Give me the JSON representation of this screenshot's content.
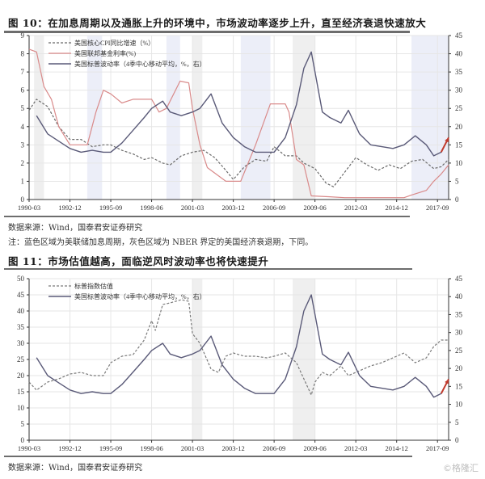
{
  "figure1": {
    "title": "图 10：在加息周期以及通胀上升的环境中，市场波动率逐步上升，直至经济衰退快速放大",
    "source": "数据来源：Wind，国泰君安证券研究",
    "note": "注：蓝色区域为美联储加息周期，灰色区域为 NBER 界定的美国经济衰退期，下同。"
  },
  "figure2": {
    "title": "图 11：市场估值越高，面临逆风时波动率也将快速提升",
    "source": "数据来源：Wind，国泰君安证券研究"
  },
  "watermark": "©格隆汇",
  "colors": {
    "vol_line": "#5a5a78",
    "ffr_line": "#d98a8a",
    "cpi_line": "#6a6a6a",
    "pe_line": "#7a7a7a",
    "hike_shade": "#eceef8",
    "recession_shade": "#efefef",
    "arrow": "#c0392b",
    "grid": "#e6e6e6"
  },
  "chart_data": [
    {
      "type": "line",
      "title": "图 10：在加息周期以及通胀上升的环境中，市场波动率逐步上升，直至经济衰退快速放大",
      "x_ticks": [
        "1990-03",
        "1992-12",
        "1995-09",
        "1998-06",
        "2001-03",
        "2003-12",
        "2006-09",
        "2009-06",
        "2012-03",
        "2014-12",
        "2017-09"
      ],
      "y_left": {
        "min": 0,
        "max": 9,
        "ticks": [
          0,
          1,
          2,
          3,
          4,
          5,
          6,
          7,
          8,
          9
        ]
      },
      "y_right": {
        "min": 0,
        "max": 45,
        "ticks": [
          0,
          5,
          10,
          15,
          20,
          25,
          30,
          35,
          40,
          45
        ]
      },
      "legend": [
        {
          "label": "美国核心CPI同比增速（%）",
          "style": "dashed"
        },
        {
          "label": "美国联邦基金利率(%)",
          "style": "solid-red"
        },
        {
          "label": "美国标普波动率（4季中心移动平均，%，右）",
          "style": "solid"
        }
      ],
      "shaded_regions": {
        "hike_cycles": [
          [
            "1994-02",
            "1995-02"
          ],
          [
            "1999-06",
            "2000-05"
          ],
          [
            "2004-06",
            "2006-06"
          ],
          [
            "2015-12",
            "2018-06"
          ]
        ],
        "recessions": [
          [
            "1990-07",
            "1991-03"
          ],
          [
            "2001-03",
            "2001-11"
          ],
          [
            "2007-12",
            "2009-06"
          ]
        ]
      },
      "series": [
        {
          "name": "美国核心CPI同比增速（%）",
          "axis": "left",
          "x": [
            "1990-03",
            "1990-09",
            "1991-06",
            "1992-03",
            "1992-12",
            "1993-09",
            "1994-06",
            "1995-03",
            "1995-09",
            "1996-06",
            "1997-03",
            "1997-12",
            "1998-06",
            "1999-03",
            "1999-09",
            "2000-06",
            "2001-03",
            "2001-12",
            "2002-09",
            "2003-06",
            "2003-12",
            "2004-09",
            "2005-06",
            "2006-03",
            "2006-09",
            "2007-06",
            "2008-03",
            "2008-09",
            "2009-06",
            "2010-03",
            "2010-09",
            "2011-06",
            "2012-03",
            "2012-12",
            "2013-09",
            "2014-06",
            "2015-03",
            "2015-12",
            "2016-09",
            "2017-06",
            "2017-12",
            "2018-06"
          ],
          "values": [
            4.9,
            5.5,
            5.1,
            4.0,
            3.3,
            3.3,
            2.9,
            3.0,
            3.0,
            2.7,
            2.5,
            2.2,
            2.3,
            2.0,
            1.9,
            2.4,
            2.6,
            2.7,
            2.3,
            1.6,
            1.1,
            1.8,
            2.2,
            2.1,
            2.9,
            2.4,
            2.4,
            2.0,
            1.7,
            0.9,
            0.7,
            1.5,
            2.3,
            1.9,
            1.6,
            1.9,
            1.7,
            2.1,
            2.2,
            1.7,
            1.8,
            2.2
          ]
        },
        {
          "name": "美国联邦基金利率(%)",
          "axis": "left",
          "x": [
            "1990-03",
            "1990-09",
            "1991-03",
            "1991-09",
            "1992-03",
            "1992-12",
            "1993-06",
            "1994-02",
            "1994-09",
            "1995-03",
            "1995-09",
            "1996-06",
            "1997-03",
            "1998-06",
            "1998-12",
            "1999-06",
            "2000-05",
            "2000-12",
            "2001-03",
            "2001-09",
            "2002-03",
            "2003-06",
            "2004-06",
            "2005-06",
            "2006-06",
            "2007-06",
            "2007-09",
            "2008-03",
            "2008-09",
            "2009-03",
            "2010-06",
            "2011-06",
            "2013-06",
            "2015-06",
            "2015-12",
            "2016-12",
            "2017-06",
            "2017-12",
            "2018-06"
          ],
          "values": [
            8.25,
            8.1,
            6.2,
            5.5,
            4.0,
            3.0,
            3.0,
            3.0,
            4.8,
            6.0,
            5.8,
            5.3,
            5.5,
            5.5,
            4.8,
            5.0,
            6.5,
            6.4,
            5.0,
            3.0,
            1.75,
            1.0,
            1.0,
            3.0,
            5.25,
            5.25,
            4.8,
            2.2,
            1.9,
            0.2,
            0.15,
            0.1,
            0.1,
            0.1,
            0.25,
            0.5,
            1.0,
            1.4,
            1.9
          ]
        },
        {
          "name": "美国标普波动率（4季中心移动平均，%，右）",
          "axis": "right",
          "x": [
            "1990-09",
            "1991-06",
            "1992-03",
            "1992-12",
            "1993-09",
            "1994-06",
            "1995-03",
            "1995-09",
            "1996-06",
            "1997-03",
            "1997-12",
            "1998-06",
            "1999-03",
            "1999-09",
            "2000-06",
            "2001-03",
            "2001-09",
            "2002-06",
            "2003-03",
            "2003-12",
            "2004-09",
            "2005-06",
            "2006-03",
            "2006-09",
            "2007-06",
            "2008-03",
            "2008-09",
            "2009-03",
            "2009-06",
            "2009-12",
            "2010-06",
            "2011-03",
            "2011-09",
            "2012-06",
            "2013-03",
            "2013-12",
            "2014-09",
            "2015-06",
            "2016-03",
            "2016-12",
            "2017-06",
            "2017-12",
            "2018-06"
          ],
          "values": [
            23,
            18,
            16,
            14,
            13,
            13.5,
            13,
            13,
            15.5,
            19,
            22.5,
            25,
            27,
            24,
            23,
            24,
            25,
            29,
            21,
            17,
            14.5,
            13,
            13,
            13,
            17,
            26,
            36,
            40.5,
            35,
            24,
            22.5,
            21,
            24.5,
            18,
            15,
            14.5,
            14,
            15,
            17.5,
            15,
            12,
            13,
            17
          ]
        }
      ]
    },
    {
      "type": "line",
      "title": "图 11：市场估值越高，面临逆风时波动率也将快速提升",
      "x_ticks": [
        "1990-03",
        "1992-12",
        "1995-09",
        "1998-06",
        "2001-03",
        "2003-12",
        "2006-09",
        "2009-06",
        "2012-03",
        "2014-12",
        "2017-09"
      ],
      "y_left": {
        "min": 0,
        "max": 50,
        "ticks": [
          0,
          5,
          10,
          15,
          20,
          25,
          30,
          35,
          40,
          45,
          50
        ]
      },
      "y_right": {
        "min": 0,
        "max": 45,
        "ticks": [
          0,
          5,
          10,
          15,
          20,
          25,
          30,
          35,
          40,
          45
        ]
      },
      "legend": [
        {
          "label": "标普指数估值",
          "style": "dashed"
        },
        {
          "label": "美国标普波动率（4季中心移动平均，%，右）",
          "style": "solid"
        }
      ],
      "shaded_regions": {
        "recessions": [
          [
            "2001-03",
            "2001-11"
          ],
          [
            "2007-12",
            "2009-06"
          ]
        ]
      },
      "series": [
        {
          "name": "标普指数估值",
          "axis": "left",
          "x": [
            "1990-03",
            "1990-09",
            "1991-06",
            "1992-03",
            "1992-12",
            "1993-09",
            "1994-06",
            "1995-03",
            "1995-09",
            "1996-06",
            "1997-03",
            "1997-12",
            "1998-06",
            "1998-09",
            "1999-03",
            "1999-09",
            "2000-06",
            "2000-12",
            "2001-03",
            "2001-09",
            "2002-06",
            "2002-12",
            "2003-06",
            "2003-12",
            "2004-09",
            "2005-06",
            "2006-03",
            "2006-09",
            "2007-06",
            "2008-03",
            "2008-09",
            "2009-03",
            "2009-06",
            "2009-12",
            "2010-06",
            "2011-03",
            "2011-09",
            "2012-06",
            "2013-03",
            "2013-12",
            "2014-09",
            "2015-06",
            "2016-03",
            "2016-12",
            "2017-06",
            "2017-12",
            "2018-06"
          ],
          "values": [
            18,
            15.5,
            18,
            19,
            20.5,
            21,
            20,
            20,
            24,
            26,
            26.5,
            31,
            37,
            34,
            42,
            42.5,
            43.5,
            43,
            33,
            30,
            22,
            21,
            26,
            27,
            26,
            26,
            25.5,
            26,
            27,
            24,
            19,
            14,
            18,
            21,
            20,
            23,
            20,
            21.5,
            23,
            24,
            25.5,
            27,
            24,
            25.5,
            29,
            31,
            31
          ]
        },
        {
          "name": "美国标普波动率（4季中心移动平均，%，右）",
          "axis": "right",
          "x": [
            "1990-09",
            "1991-06",
            "1992-03",
            "1992-12",
            "1993-09",
            "1994-06",
            "1995-03",
            "1995-09",
            "1996-06",
            "1997-03",
            "1997-12",
            "1998-06",
            "1999-03",
            "1999-09",
            "2000-06",
            "2001-03",
            "2001-09",
            "2002-06",
            "2003-03",
            "2003-12",
            "2004-09",
            "2005-06",
            "2006-03",
            "2006-09",
            "2007-06",
            "2008-03",
            "2008-09",
            "2009-03",
            "2009-06",
            "2009-12",
            "2010-06",
            "2011-03",
            "2011-09",
            "2012-06",
            "2013-03",
            "2013-12",
            "2014-09",
            "2015-06",
            "2016-03",
            "2016-12",
            "2017-06",
            "2017-12",
            "2018-06"
          ],
          "values": [
            23,
            18,
            16,
            14,
            13,
            13.5,
            13,
            13,
            15.5,
            19,
            22.5,
            25,
            27,
            24,
            23,
            24,
            25,
            29,
            21,
            17,
            14.5,
            13,
            13,
            13,
            17,
            26,
            36,
            40.5,
            35,
            24,
            22.5,
            21,
            24.5,
            18,
            15,
            14.5,
            14,
            15,
            17.5,
            15,
            12,
            13,
            17
          ]
        }
      ]
    }
  ]
}
